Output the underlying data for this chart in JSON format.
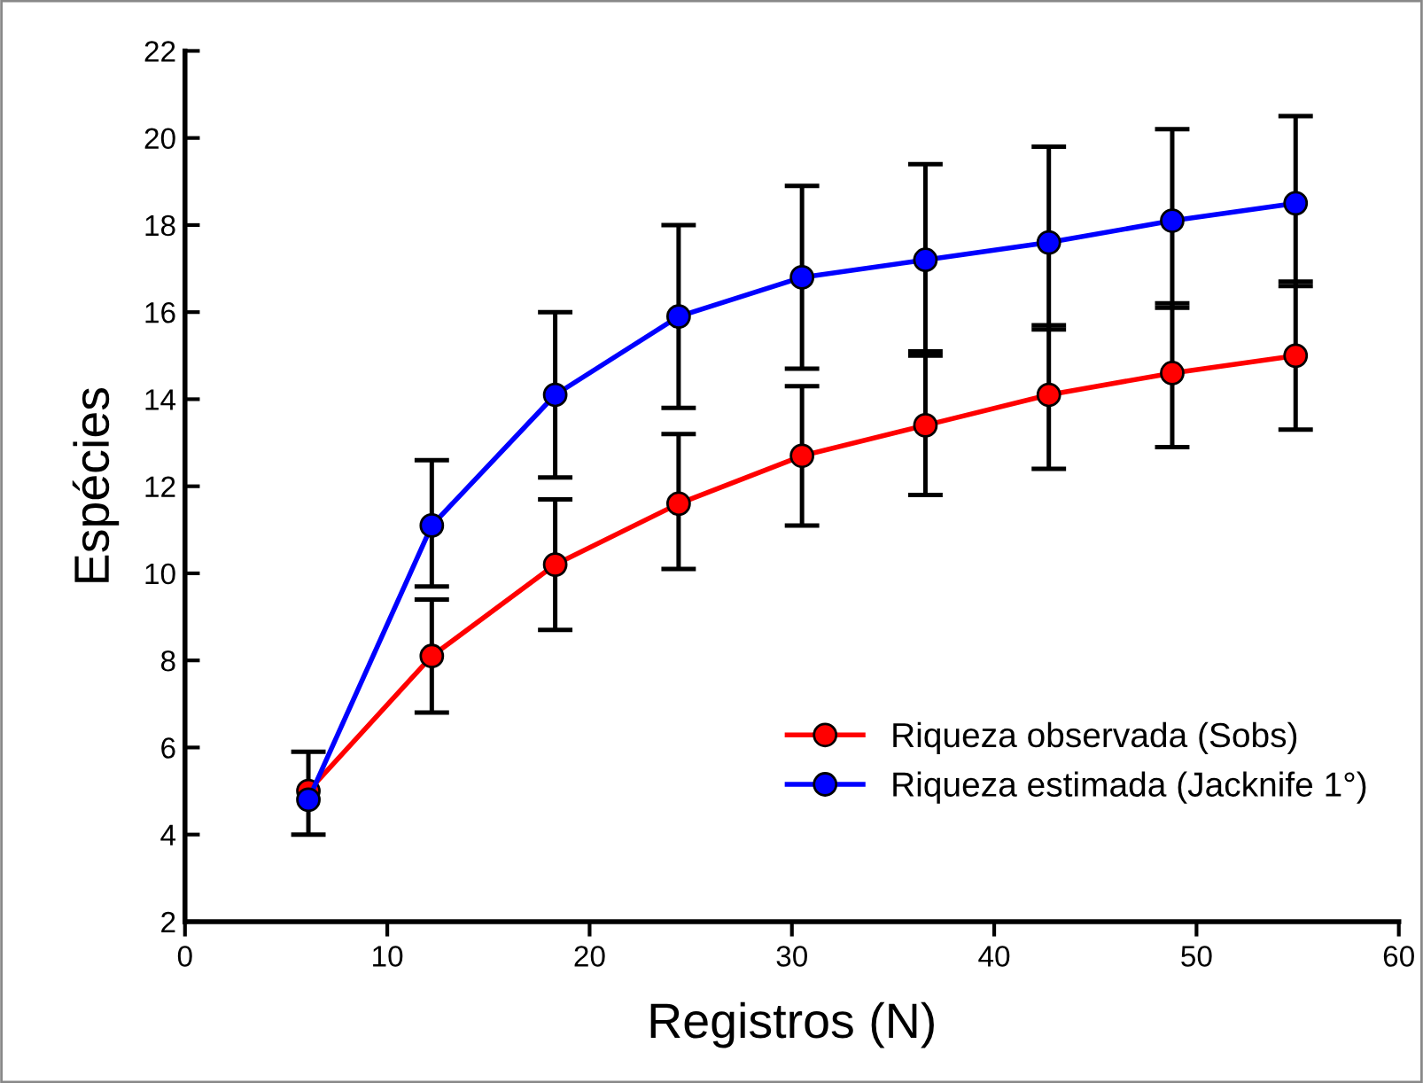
{
  "chart_data": {
    "type": "line",
    "xlabel": "Registros (N)",
    "ylabel": "Espécies",
    "xlim": [
      0,
      60
    ],
    "xticks": [
      0,
      10,
      20,
      30,
      40,
      50,
      60
    ],
    "ylim": [
      2,
      22
    ],
    "yticks": [
      2,
      4,
      6,
      8,
      10,
      12,
      14,
      16,
      18,
      20,
      22
    ],
    "x": [
      6.1,
      12.2,
      18.3,
      24.4,
      30.5,
      36.6,
      42.7,
      48.8,
      54.9
    ],
    "series": [
      {
        "name": "Riqueza observada (Sobs)",
        "color": "#ff0000",
        "values": [
          5.0,
          8.1,
          10.2,
          11.6,
          12.7,
          13.4,
          14.1,
          14.6,
          15.0
        ],
        "errors": [
          [
            4.0,
            5.9
          ],
          [
            6.8,
            9.4
          ],
          [
            8.7,
            11.7
          ],
          [
            10.1,
            13.2
          ],
          [
            11.1,
            14.3
          ],
          [
            11.8,
            15.1
          ],
          [
            12.4,
            15.7
          ],
          [
            12.9,
            16.2
          ],
          [
            13.3,
            16.7
          ]
        ]
      },
      {
        "name": "Riqueza estimada (Jacknife 1°)",
        "color": "#0000ff",
        "values": [
          4.8,
          11.1,
          14.1,
          15.9,
          16.8,
          17.2,
          17.6,
          18.1,
          18.5
        ],
        "errors": [
          null,
          [
            9.7,
            12.6
          ],
          [
            12.2,
            16.0
          ],
          [
            13.8,
            18.0
          ],
          [
            14.7,
            18.9
          ],
          [
            15.0,
            19.4
          ],
          [
            15.6,
            19.8
          ],
          [
            16.1,
            20.2
          ],
          [
            16.6,
            20.5
          ]
        ]
      }
    ],
    "marker": "circle",
    "line_style": "solid",
    "grid": false,
    "legend": "bottom right"
  }
}
